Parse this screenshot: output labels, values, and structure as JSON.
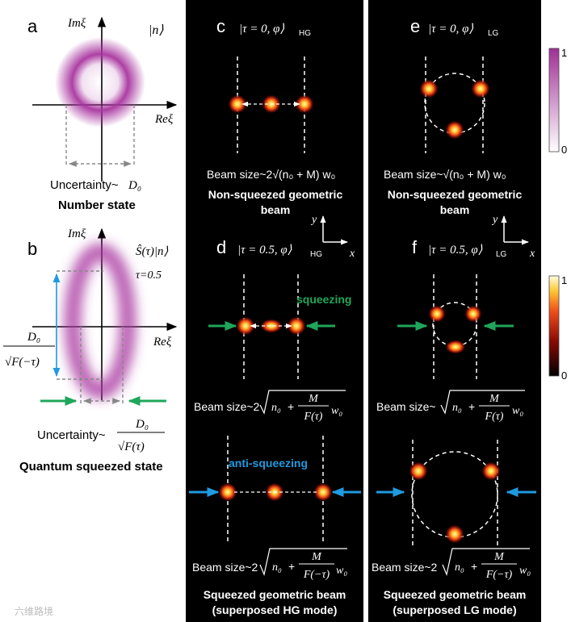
{
  "panels": {
    "a": {
      "letter": "a",
      "im_axis": "Imξ",
      "re_axis": "Reξ",
      "ket": "|n⟩",
      "uncertainty_label": "Uncertainty~",
      "uncertainty_symbol": "D₀",
      "caption": "Number state"
    },
    "b": {
      "letter": "b",
      "im_axis": "Imξ",
      "re_axis": "Reξ",
      "operator": "Ŝ(τ)|n⟩",
      "tau": "τ=0.5",
      "side_numerator": "D₀",
      "side_denominator": "√F(−τ)",
      "uncertainty_label": "Uncertainty~",
      "uncertainty_numerator": "D₀",
      "uncertainty_denominator": "√F(τ)",
      "caption": "Quantum squeezed state"
    },
    "c": {
      "letter": "c",
      "ket": "|τ = 0, φ⟩",
      "ket_sub": "HG",
      "beam_size": "Beam size~2√(n₀ + M) w₀",
      "caption_line1": "Non-squeezed geometric",
      "caption_line2": "beam"
    },
    "e": {
      "letter": "e",
      "ket": "|τ = 0, φ⟩",
      "ket_sub": "LG",
      "beam_size": "Beam size~√(n₀ + M) w₀",
      "caption_line1": "Non-squeezed geometric",
      "caption_line2": "beam"
    },
    "d": {
      "letter": "d",
      "ket": "|τ = 0.5, φ⟩",
      "ket_sub": "HG",
      "squeeze_label": "squeezing",
      "beam_size_prefix": "Beam size~2",
      "beam_size_lower": "Beam size~2",
      "anti_label": "anti-squeezing",
      "caption_line1": "Squeezed geometric beam",
      "caption_line2": "(superposed HG mode)"
    },
    "f": {
      "letter": "f",
      "ket": "|τ = 0.5, φ⟩",
      "ket_sub": "LG",
      "beam_size_prefix": "Beam size~",
      "beam_size_lower": "Beam size~2",
      "caption_line1": "Squeezed geometric beam",
      "caption_line2": "(superposed LG mode)"
    }
  },
  "formula": {
    "n0": "n₀",
    "M": "M",
    "F_tau": "F(τ)",
    "F_minus_tau": "F(−τ)",
    "w0": "w₀"
  },
  "axes_xy": {
    "y": "y",
    "x": "x"
  },
  "colorbars": {
    "top": {
      "max": "1",
      "min": "0"
    },
    "bottom": {
      "max": "1",
      "min": "0"
    }
  },
  "watermark": "六维路境",
  "colors": {
    "purple": "#a8359f",
    "green": "#1fa65a",
    "blue": "#1f9ae0",
    "black_panel": "#000000"
  }
}
